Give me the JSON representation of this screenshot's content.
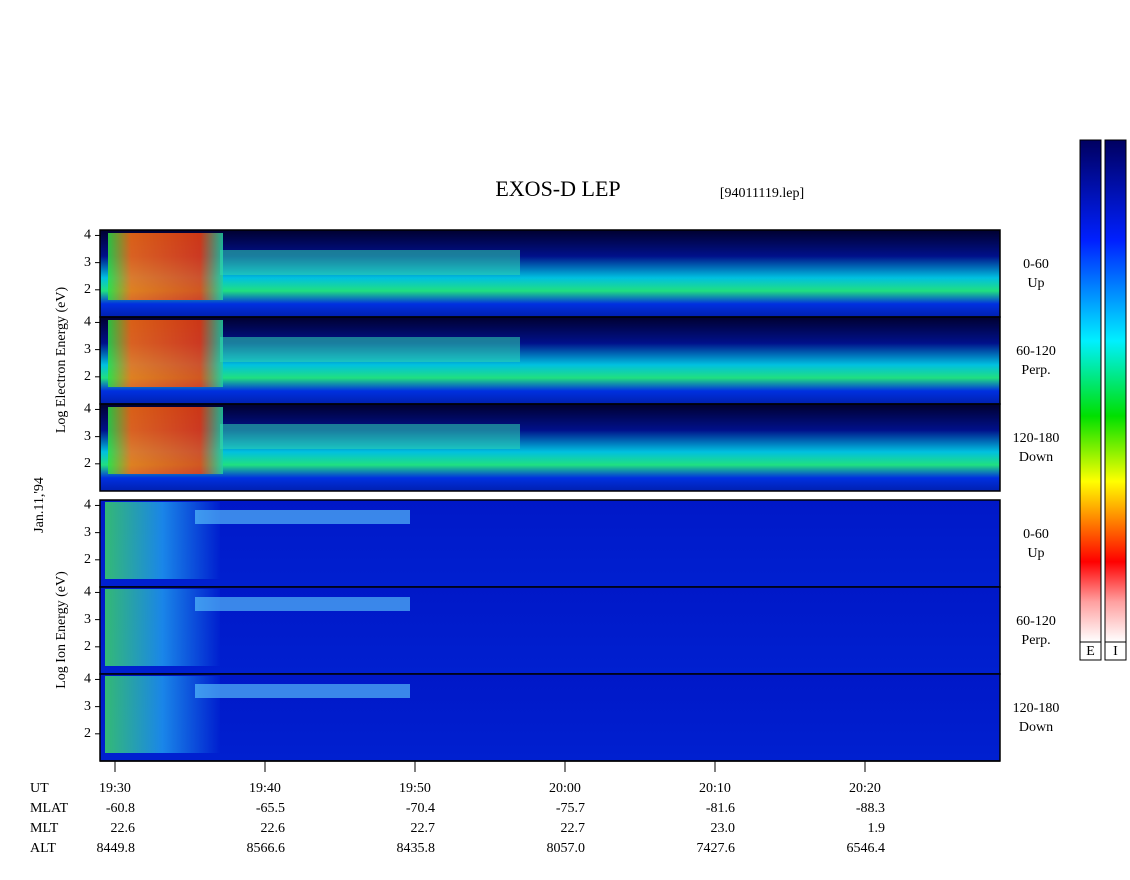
{
  "chart_data": {
    "type": "spectrogram",
    "title": "EXOS-D LEP",
    "subtitle": "[94011119.lep]",
    "date_label": "Jan.11,'94",
    "xlim": [
      "19:29",
      "20:29"
    ],
    "xticks": [
      "19:30",
      "19:40",
      "19:50",
      "20:00",
      "20:10",
      "20:20"
    ],
    "groups": [
      {
        "ylabel": "Log Electron Energy (eV)",
        "panels": [
          {
            "label": [
              "0-60",
              "Up"
            ],
            "ylim": [
              1,
              4.2
            ],
            "yticks": [
              2,
              3,
              4
            ]
          },
          {
            "label": [
              "60-120",
              "Perp."
            ],
            "ylim": [
              1,
              4.2
            ],
            "yticks": [
              2,
              3,
              4
            ]
          },
          {
            "label": [
              "120-180",
              "Down"
            ],
            "ylim": [
              1,
              4.2
            ],
            "yticks": [
              2,
              3,
              4
            ]
          }
        ]
      },
      {
        "ylabel": "Log Ion Energy (eV)",
        "panels": [
          {
            "label": [
              "0-60",
              "Up"
            ],
            "ylim": [
              1,
              4.2
            ],
            "yticks": [
              2,
              3,
              4
            ]
          },
          {
            "label": [
              "60-120",
              "Perp."
            ],
            "ylim": [
              1,
              4.2
            ],
            "yticks": [
              2,
              3,
              4
            ]
          },
          {
            "label": [
              "120-180",
              "Down"
            ],
            "ylim": [
              1,
              4.2
            ],
            "yticks": [
              2,
              3,
              4
            ]
          }
        ]
      }
    ],
    "ephemeris": [
      {
        "name": "UT",
        "values": []
      },
      {
        "name": "MLAT",
        "values": [
          "-60.8",
          "-65.5",
          "-70.4",
          "-75.7",
          "-81.6",
          "-88.3"
        ]
      },
      {
        "name": "MLT",
        "values": [
          "22.6",
          "22.6",
          "22.7",
          "22.7",
          "23.0",
          "1.9"
        ]
      },
      {
        "name": "ALT",
        "values": [
          "8449.8",
          "8566.6",
          "8435.8",
          "8057.0",
          "7427.6",
          "6546.4"
        ]
      }
    ],
    "colorbars": [
      "E",
      "I"
    ]
  }
}
